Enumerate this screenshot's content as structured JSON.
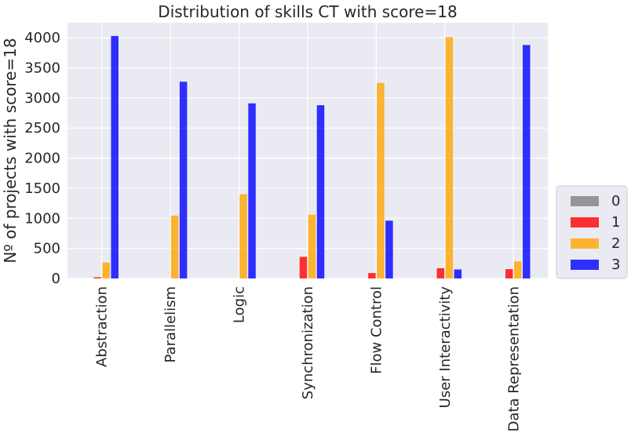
{
  "chart_data": {
    "type": "bar",
    "title": "Distribution of skills CT with score=18",
    "xlabel": "",
    "ylabel": "Nº of projects with score=18",
    "ylim": [
      0,
      4250
    ],
    "yticks": [
      0,
      500,
      1000,
      1500,
      2000,
      2500,
      3000,
      3500,
      4000
    ],
    "categories": [
      "Abstraction",
      "Parallelism",
      "Logic",
      "Synchronization",
      "Flow Control",
      "User Interactivity",
      "Data Representation"
    ],
    "series": [
      {
        "name": "0",
        "color": "#808080",
        "values": [
          0,
          0,
          0,
          0,
          0,
          0,
          0
        ]
      },
      {
        "name": "1",
        "color": "#ff0000",
        "values": [
          20,
          0,
          0,
          360,
          90,
          170,
          155
        ]
      },
      {
        "name": "2",
        "color": "#ffa500",
        "values": [
          265,
          1045,
          1400,
          1060,
          3250,
          4010,
          285
        ]
      },
      {
        "name": "3",
        "color": "#0000ff",
        "values": [
          4030,
          3270,
          2910,
          2880,
          960,
          150,
          3880
        ]
      }
    ],
    "grid": true,
    "legend_position": "right"
  }
}
